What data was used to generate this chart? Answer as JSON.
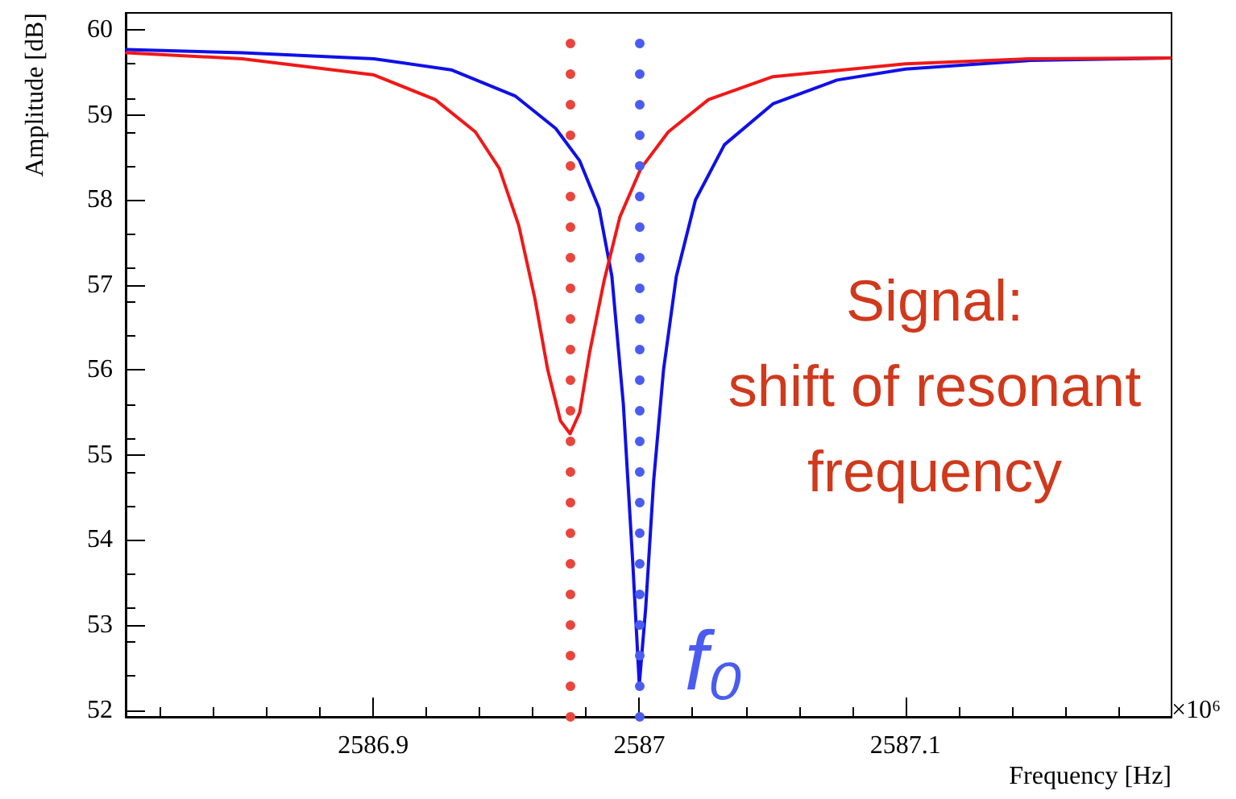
{
  "chart_data": {
    "type": "line",
    "xlabel": "Frequency [Hz]",
    "ylabel": "Amplitude [dB]",
    "xlim": [
      2586.807,
      2587.2
    ],
    "xticks": [
      2586.9,
      2587,
      2587.1
    ],
    "ylim": [
      51.92,
      60.2
    ],
    "yticks": [
      52,
      53,
      54,
      55,
      56,
      57,
      58,
      59,
      60
    ],
    "grid": false,
    "line_style": "solid",
    "marker": "none",
    "series": [
      {
        "color": "#1010e8",
        "x": [
          2586.8073,
          2586.8508,
          2586.9003,
          2586.9293,
          2586.9535,
          2586.9686,
          2586.9776,
          2586.9849,
          2586.9897,
          2586.994,
          2586.9976,
          2587.0,
          2587.0024,
          2587.0054,
          2587.0091,
          2587.0139,
          2587.0211,
          2587.032,
          2587.0502,
          2587.0743,
          2587.1,
          2587.1468,
          2587.1994
        ],
        "values": [
          59.77,
          59.73,
          59.66,
          59.53,
          59.22,
          58.84,
          58.46,
          57.9,
          57.1,
          55.6,
          53.7,
          52.3,
          53.2,
          54.7,
          56.0,
          57.1,
          58.0,
          58.65,
          59.13,
          59.41,
          59.54,
          59.64,
          59.67
        ]
      },
      {
        "color": "#f01818",
        "x": [
          2586.8073,
          2586.8508,
          2586.9003,
          2586.9233,
          2586.9384,
          2586.9474,
          2586.9547,
          2586.9607,
          2586.9656,
          2586.9704,
          2586.974,
          2586.9776,
          2586.9813,
          2586.9867,
          2586.9927,
          2587.0006,
          2587.0109,
          2587.026,
          2587.0502,
          2587.1,
          2587.1468,
          2587.1994
        ],
        "values": [
          59.73,
          59.66,
          59.47,
          59.18,
          58.8,
          58.37,
          57.7,
          56.85,
          56.0,
          55.4,
          55.25,
          55.5,
          56.2,
          57.04,
          57.8,
          58.37,
          58.8,
          59.18,
          59.45,
          59.6,
          59.66,
          59.67
        ]
      }
    ],
    "ref_lines": [
      {
        "axis": "x",
        "value": 2586.974,
        "color": "#e8453c",
        "line_style": "dotted"
      },
      {
        "axis": "x",
        "value": 2587.0,
        "color": "#4a5cf0",
        "line_style": "dotted"
      }
    ],
    "annotations": [
      "Signal:\nshift of resonant\nfrequency",
      "×10⁶",
      {
        "text": "f₀",
        "x": 2587.0,
        "y": 52.3
      }
    ]
  }
}
